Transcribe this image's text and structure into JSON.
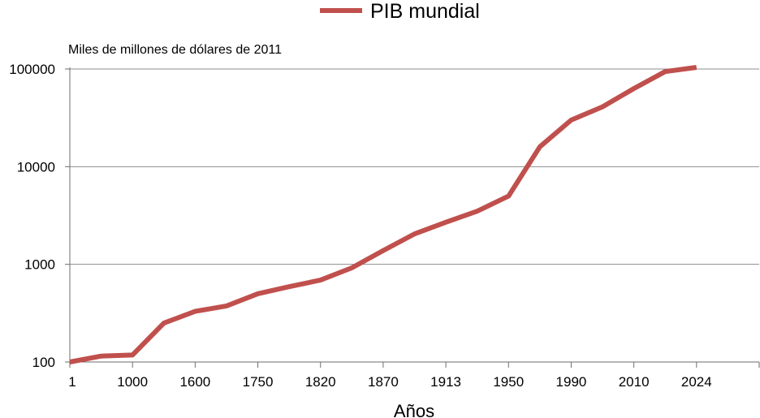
{
  "chart_data": {
    "type": "line",
    "title": "",
    "xlabel": "Años",
    "ylabel": "Miles de millones de dólares de 2011",
    "y_scale": "log",
    "ylim": [
      100,
      100000
    ],
    "grid": true,
    "legend": "top-center",
    "y_ticks": [
      "100",
      "1000",
      "10000",
      "100000"
    ],
    "categories": [
      "1",
      "1000",
      "1600",
      "1750",
      "1820",
      "1870",
      "1913",
      "1950",
      "1990",
      "2010",
      "2024"
    ],
    "series": [
      {
        "name": "PIB mundial",
        "color": "#c0504d",
        "x": [
          0,
          0.5,
          1,
          1.5,
          2,
          2.5,
          3,
          3.5,
          4,
          4.5,
          5,
          5.5,
          6,
          6.5,
          7,
          7.5,
          8,
          8.5,
          9,
          9.5,
          10
        ],
        "values": [
          100,
          115,
          118,
          250,
          330,
          375,
          500,
          590,
          690,
          920,
          1380,
          2050,
          2700,
          3500,
          5000,
          16000,
          30000,
          41000,
          63000,
          94000,
          104000
        ]
      }
    ]
  }
}
